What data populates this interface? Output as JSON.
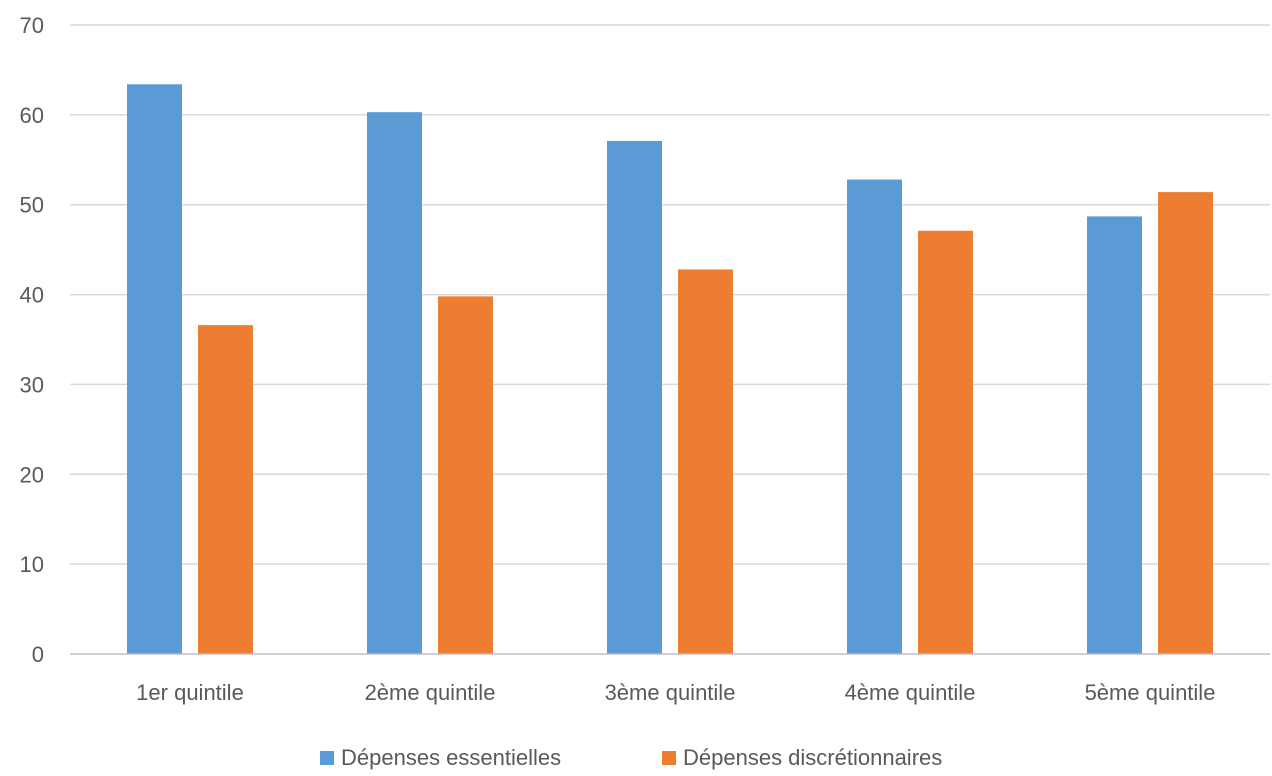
{
  "chart_data": {
    "type": "bar",
    "title": "",
    "xlabel": "",
    "ylabel": "",
    "ylim": [
      0,
      70
    ],
    "y_ticks": [
      0,
      10,
      20,
      30,
      40,
      50,
      60,
      70
    ],
    "grid": true,
    "legend_position": "bottom",
    "categories": [
      "1er quintile",
      "2ème quintile",
      "3ème quintile",
      "4ème quintile",
      "5ème quintile"
    ],
    "series": [
      {
        "name": "Dépenses essentielles",
        "color": "#5b9bd5",
        "values": [
          63.4,
          60.3,
          57.1,
          52.8,
          48.7
        ]
      },
      {
        "name": "Dépenses discrétionnaires",
        "color": "#ed7d31",
        "values": [
          36.6,
          39.8,
          42.8,
          47.1,
          51.4
        ]
      }
    ]
  }
}
